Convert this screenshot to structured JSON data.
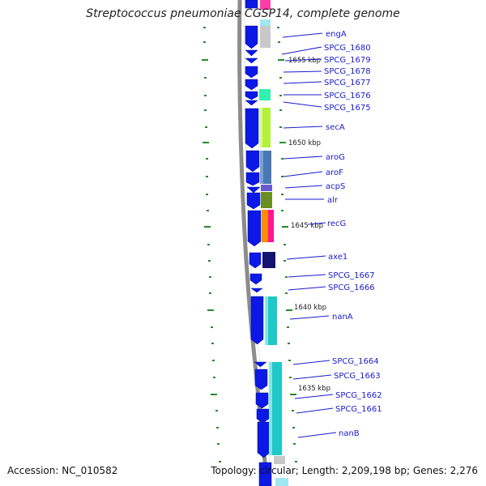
{
  "title": "Streptococcus pneumoniae CGSP14, complete genome",
  "footer": {
    "accession": "Accession: NC_010582",
    "summary": "Topology: circular; Length: 2,209,198 bp; Genes: 2,276"
  },
  "colors": {
    "backbone": "#8c8c8c",
    "gene_forward": "#0b18e6",
    "tick": "#2a8a2a",
    "label": "#1a1acc",
    "kbp_text": "#222222"
  },
  "kbp_labels": [
    "1655 kbp",
    "1650 kbp",
    "1645 kbp",
    "1640 kbp",
    "1635 kbp"
  ],
  "genes": [
    {
      "name": "engA",
      "color": "#c8c8c8"
    },
    {
      "name": "SPCG_1680",
      "color": "#ffffff"
    },
    {
      "name": "SPCG_1679",
      "color": "#ffffff"
    },
    {
      "name": "SPCG_1678",
      "color": "#ffffff"
    },
    {
      "name": "SPCG_1677",
      "color": "#ffffff"
    },
    {
      "name": "SPCG_1676",
      "color": "#33f0b0"
    },
    {
      "name": "SPCG_1675",
      "color": "#ffffff"
    },
    {
      "name": "secA",
      "color": "#b4f03c"
    },
    {
      "name": "aroG",
      "color": "#4a78b4"
    },
    {
      "name": "aroF",
      "color": "#4a78b4"
    },
    {
      "name": "acpS",
      "color": "#6a5acd"
    },
    {
      "name": "alr",
      "color": "#6b8e23"
    },
    {
      "name": "recG",
      "color": "#ff8c00"
    },
    {
      "name": "axe1",
      "color": "#141470"
    },
    {
      "name": "SPCG_1667",
      "color": "#ffffff"
    },
    {
      "name": "SPCG_1666",
      "color": "#ffffff"
    },
    {
      "name": "nanA",
      "color": "#20c8c8"
    },
    {
      "name": "SPCG_1664",
      "color": "#20c8c8"
    },
    {
      "name": "SPCG_1663",
      "color": "#20c8c8"
    },
    {
      "name": "SPCG_1662",
      "color": "#20c8c8"
    },
    {
      "name": "SPCG_1661",
      "color": "#20c8c8"
    },
    {
      "name": "nanB",
      "color": "#20c8c8"
    }
  ]
}
